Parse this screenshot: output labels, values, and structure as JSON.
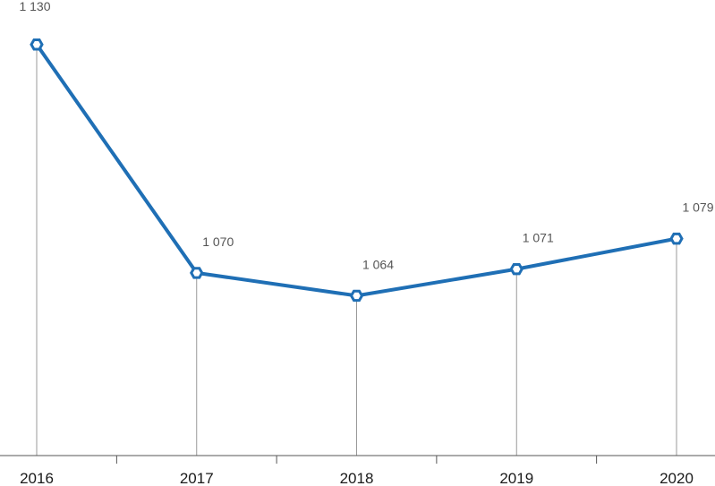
{
  "chart_data": {
    "type": "line",
    "title": "",
    "xlabel": "",
    "ylabel": "",
    "categories": [
      "2016",
      "2017",
      "2018",
      "2019",
      "2020"
    ],
    "series": [
      {
        "values": [
          1130,
          1070,
          1064,
          1071,
          1079
        ]
      }
    ],
    "data_labels": [
      "1 130",
      "1 070",
      "1 064",
      "1 071",
      "1 079"
    ],
    "ylim": [
      1022,
      1133
    ],
    "grid": false,
    "legend": "none",
    "colors": {
      "line": "#1f6fb5",
      "marker_fill": "#ffffff",
      "drop_line": "#999999",
      "axis": "#555555"
    }
  }
}
